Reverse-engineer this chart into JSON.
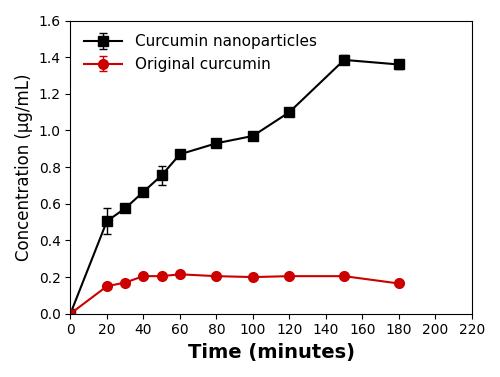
{
  "nano_x": [
    0,
    20,
    30,
    40,
    50,
    60,
    80,
    100,
    120,
    150,
    180
  ],
  "nano_y": [
    0.0,
    0.505,
    0.575,
    0.665,
    0.755,
    0.87,
    0.93,
    0.97,
    1.1,
    1.385,
    1.36
  ],
  "nano_yerr": [
    0.0,
    0.07,
    0.02,
    0.02,
    0.05,
    0.02,
    0.02,
    0.02,
    0.02,
    0.025,
    0.025
  ],
  "orig_x": [
    0,
    20,
    30,
    40,
    50,
    60,
    80,
    100,
    120,
    150,
    180
  ],
  "orig_y": [
    0.0,
    0.15,
    0.17,
    0.205,
    0.205,
    0.215,
    0.205,
    0.2,
    0.205,
    0.205,
    0.165
  ],
  "orig_yerr": [
    0.0,
    0.0,
    0.0,
    0.0,
    0.0,
    0.0,
    0.0,
    0.0,
    0.0,
    0.0,
    0.0
  ],
  "nano_color": "#000000",
  "orig_color": "#cc0000",
  "nano_label": "Curcumin nanoparticles",
  "orig_label": "Original curcumin",
  "xlabel": "Time (minutes)",
  "ylabel": "Concentration (μg/mL)",
  "xlim": [
    0,
    215
  ],
  "ylim": [
    0.0,
    1.6
  ],
  "xticks": [
    0,
    20,
    40,
    60,
    80,
    100,
    120,
    140,
    160,
    180,
    200,
    220
  ],
  "yticks": [
    0.0,
    0.2,
    0.4,
    0.6,
    0.8,
    1.0,
    1.2,
    1.4,
    1.6
  ],
  "xlabel_fontsize": 14,
  "ylabel_fontsize": 12,
  "tick_fontsize": 10,
  "legend_fontsize": 11,
  "line_width": 1.5,
  "marker_size": 7,
  "capsize": 3
}
